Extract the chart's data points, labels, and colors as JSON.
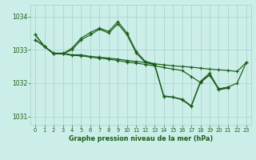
{
  "title": "Graphe pression niveau de la mer (hPa)",
  "bg_color": "#cceee8",
  "grid_color": "#aad4ce",
  "line_color": "#1a5c1a",
  "xlim": [
    -0.5,
    23.5
  ],
  "ylim": [
    1030.75,
    1034.35
  ],
  "yticks": [
    1031,
    1032,
    1033,
    1034
  ],
  "xticks": [
    0,
    1,
    2,
    3,
    4,
    5,
    6,
    7,
    8,
    9,
    10,
    11,
    12,
    13,
    14,
    15,
    16,
    17,
    18,
    19,
    20,
    21,
    22,
    23
  ],
  "series": [
    {
      "x": [
        0,
        1,
        2,
        3,
        4,
        5,
        6,
        7,
        8,
        9,
        10,
        11,
        12,
        13,
        14,
        15,
        16,
        17,
        18,
        19,
        20,
        21,
        22,
        23
      ],
      "y": [
        1033.3,
        1033.1,
        1032.9,
        1032.9,
        1032.85,
        1032.85,
        1032.8,
        1032.78,
        1032.75,
        1032.72,
        1032.68,
        1032.65,
        1032.62,
        1032.58,
        1032.55,
        1032.52,
        1032.5,
        1032.48,
        1032.45,
        1032.42,
        1032.4,
        1032.38,
        1032.35,
        1032.62
      ]
    },
    {
      "x": [
        0,
        1,
        2,
        3,
        4,
        5,
        6,
        7,
        8,
        9,
        10,
        11,
        12,
        13,
        14,
        15,
        16,
        17,
        18,
        19,
        20,
        21,
        22,
        23
      ],
      "y": [
        1033.3,
        1033.1,
        1032.88,
        1032.88,
        1032.83,
        1032.82,
        1032.78,
        1032.75,
        1032.72,
        1032.68,
        1032.63,
        1032.6,
        1032.56,
        1032.52,
        1032.47,
        1032.42,
        1032.38,
        1032.2,
        1032.02,
        1032.25,
        1031.83,
        1031.88,
        1032.0,
        1032.62
      ]
    },
    {
      "x": [
        0,
        1,
        2,
        3,
        4,
        5,
        6,
        7,
        8,
        9,
        10,
        11,
        12,
        13,
        14,
        15,
        16,
        17,
        18,
        19,
        20,
        21,
        22,
        23
      ],
      "y": [
        1033.45,
        1033.1,
        1032.88,
        1032.88,
        1033.05,
        1033.35,
        1033.52,
        1033.65,
        1033.55,
        1033.85,
        1033.5,
        1032.95,
        1032.65,
        1032.58,
        1031.62,
        1031.58,
        1031.52,
        1031.32,
        1032.05,
        1032.3,
        1031.82,
        1031.87,
        null,
        null
      ]
    },
    {
      "x": [
        0,
        1,
        2,
        3,
        4,
        5,
        6,
        7,
        8,
        9,
        10,
        11,
        12,
        13,
        14,
        15,
        16,
        17,
        18,
        19,
        20,
        21,
        22,
        23
      ],
      "y": [
        1033.45,
        1033.1,
        1032.88,
        1032.88,
        1033.0,
        1033.3,
        1033.45,
        1033.62,
        1033.5,
        1033.78,
        1033.45,
        1032.9,
        1032.62,
        1032.55,
        1031.6,
        1031.58,
        1031.5,
        1031.3,
        1032.02,
        1032.25,
        1031.8,
        1031.85,
        null,
        null
      ]
    }
  ]
}
